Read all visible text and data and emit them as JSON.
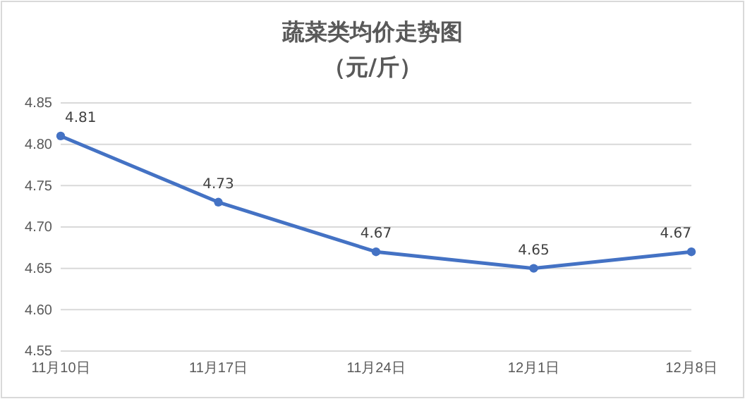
{
  "chart_data": {
    "type": "line",
    "title": "蔬菜类均价走势图",
    "subtitle": "（元/斤）",
    "categories": [
      "11月10日",
      "11月17日",
      "11月24日",
      "12月1日",
      "12月8日"
    ],
    "series": [
      {
        "color": "#4472c4",
        "values": [
          4.81,
          4.73,
          4.67,
          4.65,
          4.67
        ]
      }
    ],
    "ylim": [
      4.55,
      4.85
    ],
    "yticks": [
      {
        "value": 4.55,
        "label": "4.55"
      },
      {
        "value": 4.6,
        "label": "4.60"
      },
      {
        "value": 4.65,
        "label": "4.65"
      },
      {
        "value": 4.7,
        "label": "4.70"
      },
      {
        "value": 4.75,
        "label": "4.75"
      },
      {
        "value": 4.8,
        "label": "4.80"
      },
      {
        "value": 4.85,
        "label": "4.85"
      }
    ],
    "grid": "y",
    "marker": "circle",
    "line_style": "solid",
    "data_labels": true
  }
}
